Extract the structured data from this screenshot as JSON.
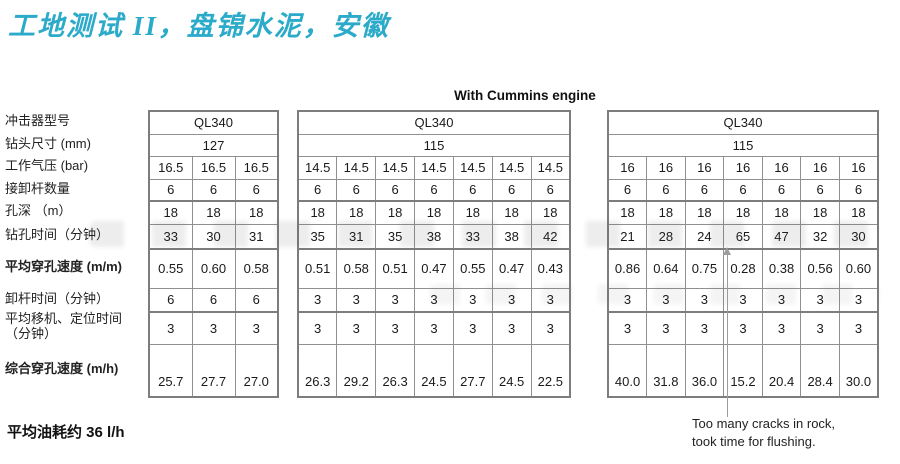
{
  "title": "工地测试 II，盘锦水泥，安徽",
  "engine_label": "With Cummins engine",
  "row_labels": [
    {
      "text": "冲击器型号",
      "bold": false
    },
    {
      "text": "钻头尺寸 (mm)",
      "bold": false
    },
    {
      "text": "工作气压 (bar)",
      "bold": false
    },
    {
      "text": "接卸杆数量",
      "bold": false
    },
    {
      "text": "孔深 （m）",
      "bold": false
    },
    {
      "text": "钻孔时间（分钟）",
      "bold": false
    },
    {
      "text": "平均穿孔速度 (m/m)",
      "bold": true
    },
    {
      "text": "卸杆时间（分钟）",
      "bold": false
    },
    {
      "text": "平均移机、定位时间\n（分钟）",
      "bold": false
    },
    {
      "text": "综合穿孔速度 (m/h)",
      "bold": true
    }
  ],
  "tables": [
    {
      "model": "QL340",
      "bit_size": "127",
      "data_rows": [
        [
          "16.5",
          "16.5",
          "16.5"
        ],
        [
          "6",
          "6",
          "6"
        ],
        [
          "18",
          "18",
          "18"
        ],
        [
          "33",
          "30",
          "31"
        ],
        [
          "0.55",
          "0.60",
          "0.58"
        ],
        [
          "6",
          "6",
          "6"
        ],
        [
          "3",
          "3",
          "3"
        ],
        [
          "25.7",
          "27.7",
          "27.0"
        ]
      ]
    },
    {
      "model": "QL340",
      "bit_size": "115",
      "data_rows": [
        [
          "14.5",
          "14.5",
          "14.5",
          "14.5",
          "14.5",
          "14.5",
          "14.5"
        ],
        [
          "6",
          "6",
          "6",
          "6",
          "6",
          "6",
          "6"
        ],
        [
          "18",
          "18",
          "18",
          "18",
          "18",
          "18",
          "18"
        ],
        [
          "35",
          "31",
          "35",
          "38",
          "33",
          "38",
          "42"
        ],
        [
          "0.51",
          "0.58",
          "0.51",
          "0.47",
          "0.55",
          "0.47",
          "0.43"
        ],
        [
          "3",
          "3",
          "3",
          "3",
          "3",
          "3",
          "3"
        ],
        [
          "3",
          "3",
          "3",
          "3",
          "3",
          "3",
          "3"
        ],
        [
          "26.3",
          "29.2",
          "26.3",
          "24.5",
          "27.7",
          "24.5",
          "22.5"
        ]
      ]
    },
    {
      "model": "QL340",
      "bit_size": "115",
      "data_rows": [
        [
          "16",
          "16",
          "16",
          "16",
          "16",
          "16",
          "16"
        ],
        [
          "6",
          "6",
          "6",
          "6",
          "6",
          "6",
          "6"
        ],
        [
          "18",
          "18",
          "18",
          "18",
          "18",
          "18",
          "18"
        ],
        [
          "21",
          "28",
          "24",
          "65",
          "47",
          "32",
          "30"
        ],
        [
          "0.86",
          "0.64",
          "0.75",
          "0.28",
          "0.38",
          "0.56",
          "0.60"
        ],
        [
          "3",
          "3",
          "3",
          "3",
          "3",
          "3",
          "3"
        ],
        [
          "3",
          "3",
          "3",
          "3",
          "3",
          "3",
          "3"
        ],
        [
          "40.0",
          "31.8",
          "36.0",
          "15.2",
          "20.4",
          "28.4",
          "30.0"
        ]
      ]
    }
  ],
  "fuel_note": "平均油耗约 36 l/h",
  "annotation_lines": [
    "Too many cracks in rock,",
    "took time for flushing."
  ],
  "colors": {
    "title": "#2baac9",
    "border": "#7d7d7d",
    "arrow": "#9c9c9c"
  }
}
